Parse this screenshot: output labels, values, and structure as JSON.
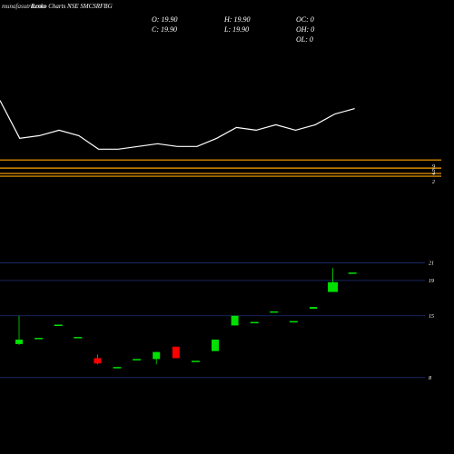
{
  "header": {
    "watermark": "munafasutra.com",
    "title": "Renko Charts NSE SMCSRFBG"
  },
  "ohlc": {
    "open": "O: 19.90",
    "high": "H: 19.90",
    "oc": "OC: 0",
    "close": "C: 19.90",
    "low": "L: 19.90",
    "oh": "OH: 0",
    "ol": "OL: 0"
  },
  "colors": {
    "background": "#000000",
    "up": "#00e000",
    "down": "#ff0000",
    "line": "#ffffff",
    "level_line": "#ffa500",
    "grid": "#1f2f7a",
    "text": "#ffffff"
  },
  "chart_data": [
    {
      "type": "line",
      "name": "indicator",
      "values": [
        63,
        49,
        50,
        52,
        50,
        45,
        45,
        46,
        47,
        46,
        46,
        49,
        53,
        52,
        54,
        52,
        54,
        58,
        60
      ],
      "levels": [
        {
          "value": 41,
          "label": "9"
        },
        {
          "value": 38,
          "label": "6"
        },
        {
          "value": 36,
          "label": "4"
        },
        {
          "value": 35,
          "label": "2"
        }
      ],
      "ylim": [
        33,
        80
      ]
    },
    {
      "type": "candlestick",
      "y_ticks": [
        21,
        19,
        15,
        8
      ],
      "ylim": [
        5,
        23
      ],
      "candles": [
        {
          "o": 11.8,
          "h": 15.0,
          "l": 11.7,
          "c": 12.3
        },
        {
          "o": 12.5,
          "h": 12.5,
          "l": 12.5,
          "c": 12.5
        },
        {
          "o": 14.0,
          "h": 14.0,
          "l": 14.0,
          "c": 14.0
        },
        {
          "o": 12.6,
          "h": 12.6,
          "l": 12.6,
          "c": 12.6
        },
        {
          "o": 10.2,
          "h": 10.6,
          "l": 9.5,
          "c": 9.6
        },
        {
          "o": 9.2,
          "h": 9.2,
          "l": 9.2,
          "c": 9.2
        },
        {
          "o": 10.1,
          "h": 10.1,
          "l": 10.1,
          "c": 10.1
        },
        {
          "o": 10.1,
          "h": 10.9,
          "l": 9.5,
          "c": 10.9
        },
        {
          "o": 11.5,
          "h": 11.5,
          "l": 10.2,
          "c": 10.2
        },
        {
          "o": 9.9,
          "h": 9.9,
          "l": 9.9,
          "c": 9.9
        },
        {
          "o": 11.0,
          "h": 12.3,
          "l": 11.0,
          "c": 12.3
        },
        {
          "o": 13.9,
          "h": 15.0,
          "l": 13.9,
          "c": 15.0
        },
        {
          "o": 14.3,
          "h": 14.3,
          "l": 14.3,
          "c": 14.3
        },
        {
          "o": 15.5,
          "h": 15.5,
          "l": 15.5,
          "c": 15.5
        },
        {
          "o": 14.4,
          "h": 14.4,
          "l": 14.4,
          "c": 14.4
        },
        {
          "o": 15.8,
          "h": 16.0,
          "l": 15.8,
          "c": 16.0
        },
        {
          "o": 17.7,
          "h": 20.4,
          "l": 17.7,
          "c": 18.8
        },
        {
          "o": 19.9,
          "h": 19.9,
          "l": 19.9,
          "c": 19.9
        }
      ]
    }
  ]
}
